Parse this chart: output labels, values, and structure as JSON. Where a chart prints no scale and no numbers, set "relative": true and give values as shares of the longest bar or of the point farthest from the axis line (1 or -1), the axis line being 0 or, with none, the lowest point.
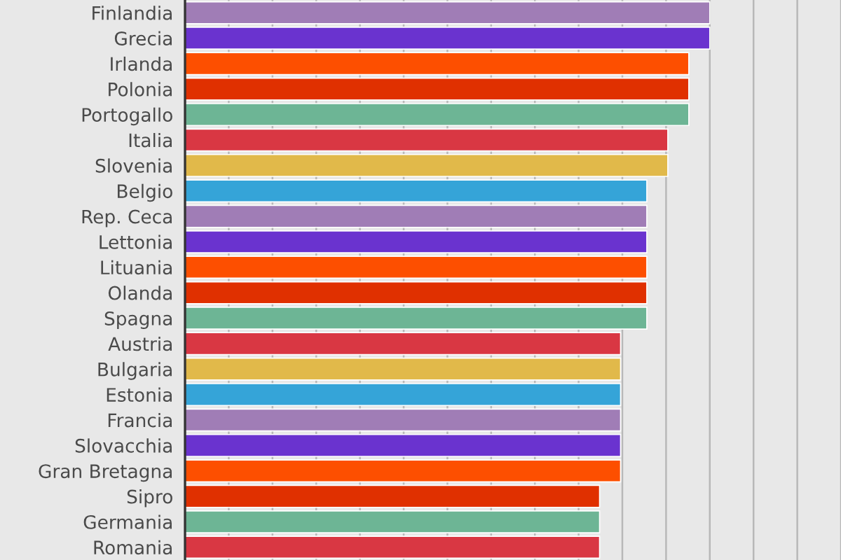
{
  "chart_data": {
    "type": "bar",
    "orientation": "horizontal",
    "relative": true,
    "grid": "x",
    "categories": [
      "Finlandia",
      "Grecia",
      "Irlanda",
      "Polonia",
      "Portogallo",
      "Italia",
      "Slovenia",
      "Belgio",
      "Rep. Ceca",
      "Lettonia",
      "Lituania",
      "Olanda",
      "Spagna",
      "Austria",
      "Bulgaria",
      "Estonia",
      "Francia",
      "Slovacchia",
      "Gran Bretagna",
      "Sipro",
      "Germania",
      "Romania"
    ],
    "values": [
      1,
      1,
      0.96,
      0.96,
      0.96,
      0.92,
      0.92,
      0.88,
      0.88,
      0.88,
      0.88,
      0.88,
      0.88,
      0.83,
      0.83,
      0.83,
      0.83,
      0.83,
      0.83,
      0.79,
      0.79,
      0.79
    ],
    "colors": [
      "#a07db6",
      "#6a33cf",
      "#fd4f00",
      "#e03000",
      "#6db595",
      "#d93743",
      "#e1b94a",
      "#35a4d8",
      "#a07db6",
      "#6a33cf",
      "#fd4f00",
      "#e03000",
      "#6db595",
      "#d93743",
      "#e1b94a",
      "#35a4d8",
      "#a07db6",
      "#6a33cf",
      "#fd4f00",
      "#e03000",
      "#6db595",
      "#d93743"
    ]
  }
}
